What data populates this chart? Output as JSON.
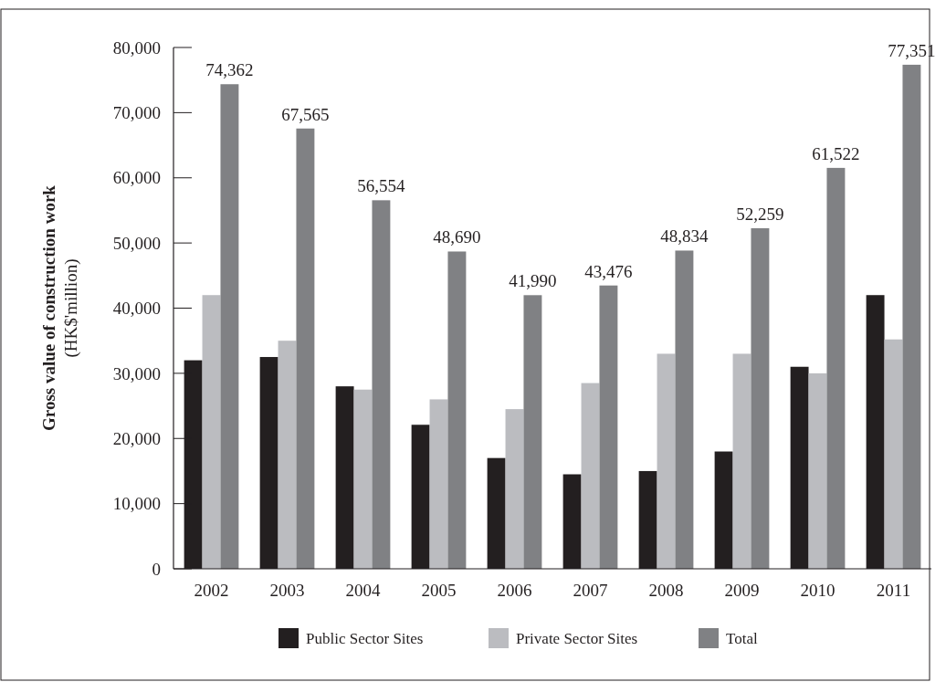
{
  "chart_data": {
    "type": "bar",
    "ylabel": "Gross value of construction work\n(HK$'million)",
    "categories": [
      "2002",
      "2003",
      "2004",
      "2005",
      "2006",
      "2007",
      "2008",
      "2009",
      "2010",
      "2011"
    ],
    "series": [
      {
        "name": "Public Sector Sites",
        "color": "#231f20",
        "values": [
          32000,
          32500,
          28000,
          22100,
          17000,
          14500,
          15000,
          18000,
          31000,
          42000
        ]
      },
      {
        "name": "Private Sector Sites",
        "color": "#bbbcc0",
        "values": [
          42000,
          35000,
          27500,
          26000,
          24500,
          28500,
          33000,
          33000,
          30000,
          35200
        ]
      },
      {
        "name": "Total",
        "color": "#808184",
        "values": [
          74362,
          67565,
          56554,
          48690,
          41990,
          43476,
          48834,
          52259,
          61522,
          77351
        ],
        "value_labels": [
          "74,362",
          "67,565",
          "56,554",
          "48,690",
          "41,990",
          "43,476",
          "48,834",
          "52,259",
          "61,522",
          "77,351"
        ]
      }
    ],
    "ylim": [
      0,
      80000
    ],
    "yticks": [
      0,
      {
        "value": 10000,
        "label": "10,000"
      },
      {
        "value": 20000,
        "label": "20,000"
      },
      {
        "value": 30000,
        "label": "30,000"
      },
      {
        "value": 40000,
        "label": "40,000"
      },
      {
        "value": 50000,
        "label": "50,000"
      },
      {
        "value": 60000,
        "label": "60,000"
      },
      {
        "value": 70000,
        "label": "70,000"
      },
      {
        "value": 80000,
        "label": "80,000"
      }
    ],
    "grid": false,
    "legend": "bottom"
  }
}
